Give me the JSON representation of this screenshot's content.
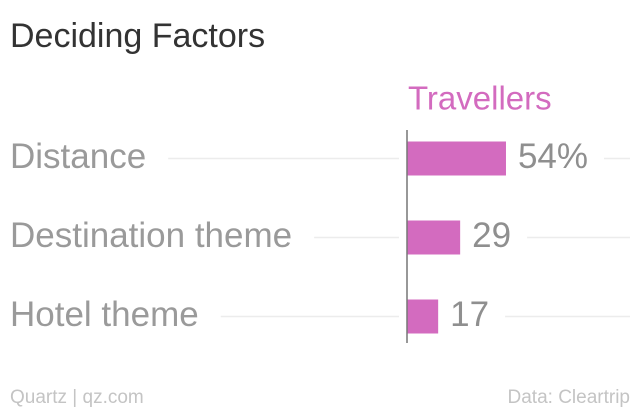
{
  "chart_data": {
    "type": "bar",
    "title": "Deciding Factors",
    "categories": [
      "Distance",
      "Destination theme",
      "Hotel theme"
    ],
    "series": [
      {
        "name": "Travellers",
        "color": "#d36bbf",
        "values": [
          54,
          29,
          17
        ],
        "value_labels": [
          "54%",
          "29",
          "17"
        ]
      }
    ],
    "source": "Data: Cleartrip",
    "credit": "Quartz | qz.com"
  }
}
